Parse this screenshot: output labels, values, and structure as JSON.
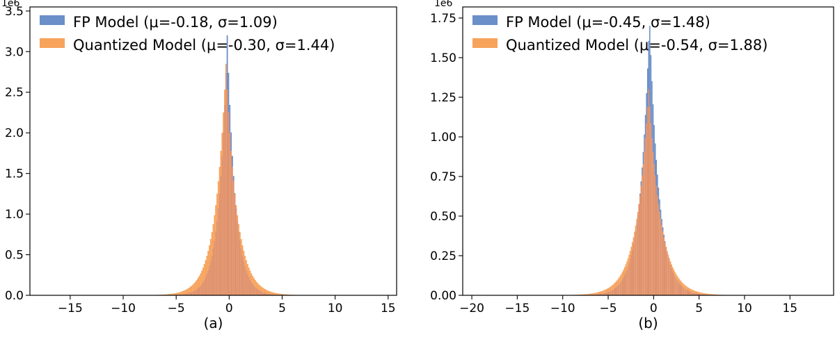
{
  "chart_data": [
    {
      "type": "histogram",
      "caption": "(a)",
      "x_ticks": [
        -15,
        -10,
        -5,
        0,
        5,
        10,
        15
      ],
      "y_ticks": [
        0.0,
        0.5,
        1.0,
        1.5,
        2.0,
        2.5,
        3.0,
        3.5
      ],
      "y_tick_labels": [
        "0.0",
        "0.5",
        "1.0",
        "1.5",
        "2.0",
        "2.5",
        "3.0",
        "3.5"
      ],
      "y_multiplier": "1e6",
      "xlim": [
        -18.8,
        15.8
      ],
      "ylim": [
        0,
        3.55
      ],
      "legend_placement": "top-left",
      "colors": {
        "fp": "#6b8fc8",
        "quant": "#f7a35c",
        "overlap": "#e0916a"
      },
      "series": [
        {
          "name": "FP Model (μ=-0.18, σ=1.09)",
          "kind": "fp",
          "mu": -0.18,
          "sigma": 1.09,
          "peak": 3.2
        },
        {
          "name": "Quantized Model (μ=-0.30, σ=1.44)",
          "kind": "quant",
          "mu": -0.3,
          "sigma": 1.44,
          "peak": 2.85
        }
      ]
    },
    {
      "type": "histogram",
      "caption": "(b)",
      "x_ticks": [
        -20,
        -15,
        -10,
        -5,
        0,
        5,
        10,
        15
      ],
      "y_ticks": [
        0.0,
        0.25,
        0.5,
        0.75,
        1.0,
        1.25,
        1.5,
        1.75
      ],
      "y_tick_labels": [
        "0.00",
        "0.25",
        "0.50",
        "0.75",
        "1.00",
        "1.25",
        "1.50",
        "1.75"
      ],
      "y_multiplier": "1e6",
      "xlim": [
        -21.0,
        19.8
      ],
      "ylim": [
        0,
        1.82
      ],
      "legend_placement": "top-left",
      "colors": {
        "fp": "#6b8fc8",
        "quant": "#f7a35c",
        "overlap": "#e0916a"
      },
      "series": [
        {
          "name": "FP Model (μ=-0.45, σ=1.48)",
          "kind": "fp",
          "mu": -0.45,
          "sigma": 1.48,
          "peak": 1.75
        },
        {
          "name": "Quantized Model (μ=-0.54, σ=1.88)",
          "kind": "quant",
          "mu": -0.54,
          "sigma": 1.88,
          "peak": 1.3
        }
      ]
    }
  ]
}
